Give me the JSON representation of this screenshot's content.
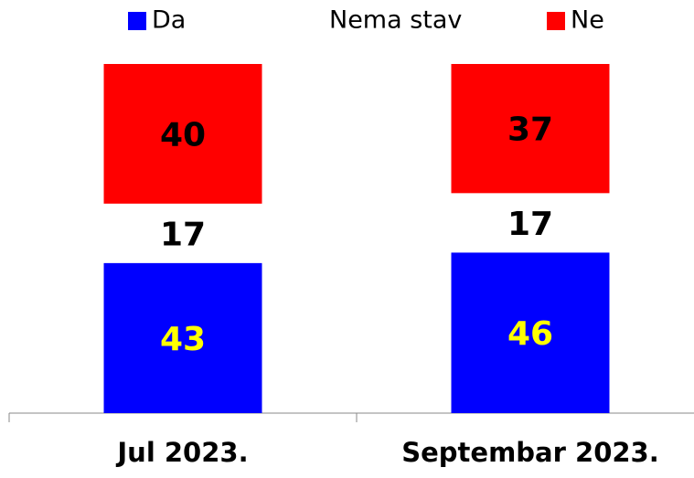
{
  "chart_data": {
    "type": "stacked_bar",
    "categories": [
      "Jul 2023.",
      "Septembar 2023."
    ],
    "series": [
      {
        "name": "Da",
        "color": "#0000ff",
        "label_color": "#ffff00",
        "values": [
          43,
          46
        ]
      },
      {
        "name": "Nema stav",
        "color": "#ffffff",
        "label_color": "#000000",
        "values": [
          17,
          17
        ]
      },
      {
        "name": "Ne",
        "color": "#ff0000",
        "label_color": "#000000",
        "values": [
          40,
          37
        ]
      }
    ],
    "legend": "top"
  }
}
